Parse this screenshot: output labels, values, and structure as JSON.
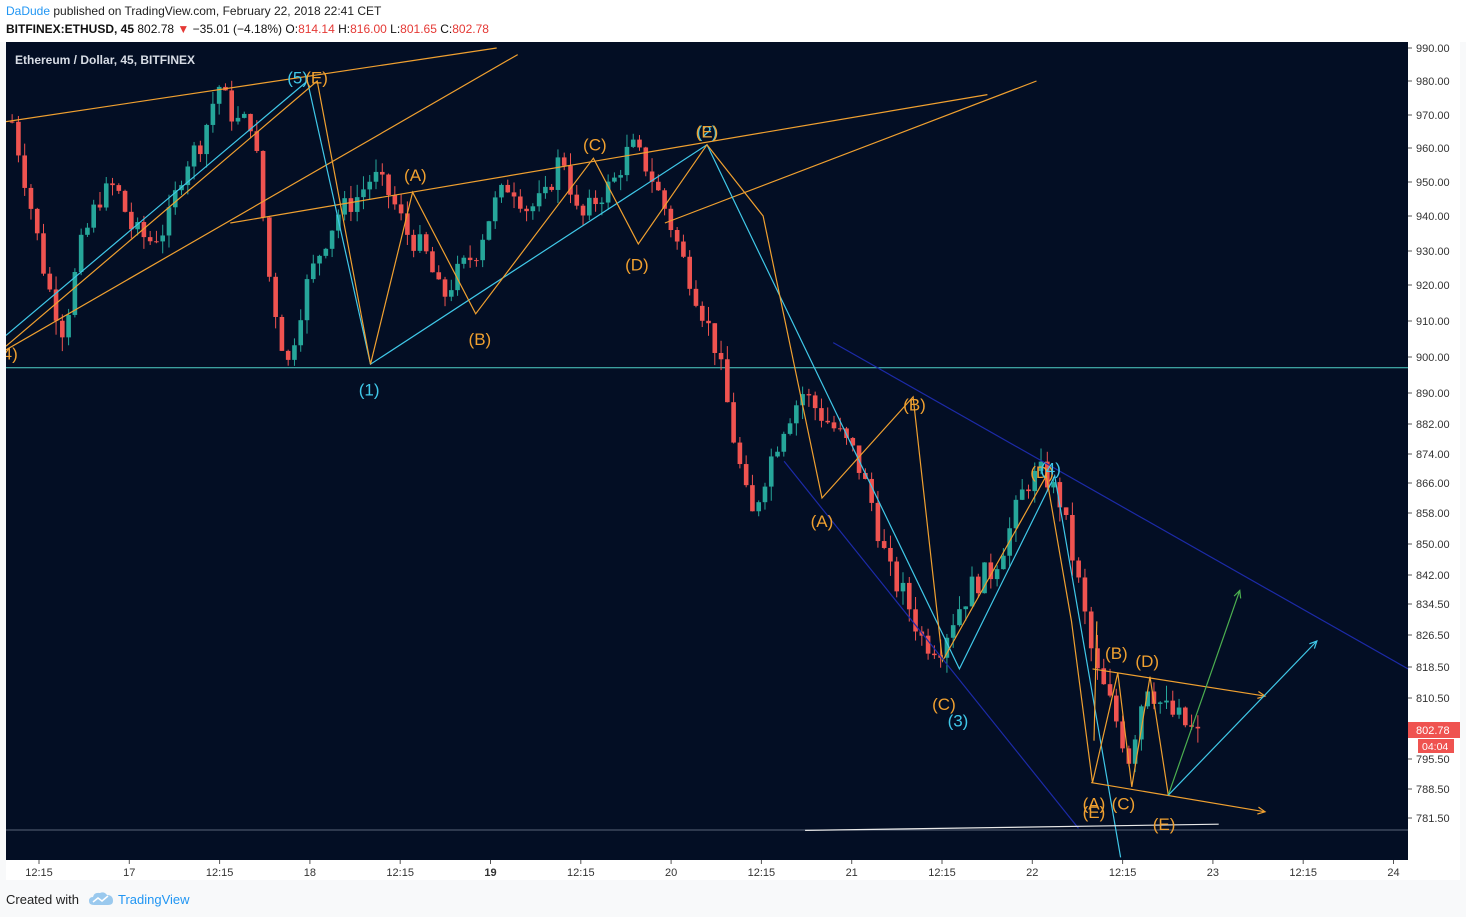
{
  "header": {
    "author": "DaDude",
    "published": "published on TradingView.com, February 22, 2018 22:41 CET",
    "symbol": "BITFINEX:ETHUSD, 45",
    "last": "802.78",
    "change": "−35.01 (−4.18%)",
    "o_label": "O:",
    "o_value": "814.14",
    "h_label": "H:",
    "h_value": "816.00",
    "l_label": "L:",
    "l_value": "801.65",
    "c_label": "C:",
    "c_value": "802.78"
  },
  "footer": {
    "created_with": "Created with",
    "brand": "TradingView"
  },
  "colors": {
    "background": "#030e24",
    "up": "#26a69a",
    "down": "#ef5350",
    "orange": "#f0a030",
    "cyan": "#40c8e8",
    "navy": "#1c2aa8",
    "green": "#4caf50"
  },
  "chart_data": {
    "type": "candlestick",
    "title": "Ethereum / Dollar, 45, BITFINEX",
    "y_ticks": [
      990,
      980,
      970,
      960,
      950,
      940,
      930,
      920,
      910,
      900,
      890,
      882,
      874,
      866,
      858,
      850,
      842,
      834.5,
      826.5,
      818.5,
      810.5,
      795.5,
      788.5,
      781.5
    ],
    "y_tick_labels": [
      "990.00",
      "980.00",
      "970.00",
      "960.00",
      "950.00",
      "940.00",
      "930.00",
      "920.00",
      "910.00",
      "900.00",
      "890.00",
      "882.00",
      "874.00",
      "866.00",
      "858.00",
      "850.00",
      "842.00",
      "834.50",
      "826.50",
      "818.50",
      "810.50",
      "795.50",
      "788.50",
      "781.50"
    ],
    "x_ticks": [
      "12:15",
      "17",
      "12:15",
      "18",
      "12:15",
      "19",
      "12:15",
      "20",
      "12:15",
      "21",
      "12:15",
      "22",
      "12:15",
      "23",
      "12:15",
      "24"
    ],
    "price_label": "802.78",
    "countdown": "04:04",
    "horizontal_line": 897,
    "path": [
      968,
      945,
      921,
      907,
      931,
      945,
      949,
      936,
      933,
      937,
      955,
      962,
      979,
      968,
      968,
      921,
      897,
      918,
      931,
      941,
      945,
      952,
      946,
      935,
      930,
      916,
      924,
      930,
      943,
      950,
      942,
      945,
      959,
      938,
      945,
      950,
      961,
      954,
      942,
      928,
      915,
      902,
      878,
      856,
      871,
      883,
      890,
      885,
      880,
      874,
      861,
      843,
      836,
      825,
      824,
      833,
      840,
      843,
      853,
      866,
      869,
      861,
      841,
      818,
      808,
      796,
      815,
      808,
      805,
      801
    ],
    "seed": 7,
    "wave_labels": [
      {
        "t": "(5)",
        "x": 0.208,
        "y": 981,
        "c": "cyan"
      },
      {
        "t": "(E)",
        "x": 0.2215,
        "y": 981,
        "c": "orange"
      },
      {
        "t": "(A)",
        "x": 0.292,
        "y": 952,
        "c": "orange"
      },
      {
        "t": "(C)",
        "x": 0.42,
        "y": 961,
        "c": "orange"
      },
      {
        "t": "(2)",
        "x": 0.5,
        "y": 965,
        "c": "cyan"
      },
      {
        "t": "(E)",
        "x": 0.5,
        "y": 965,
        "c": "orange"
      },
      {
        "t": "(D)",
        "x": 0.45,
        "y": 926,
        "c": "orange"
      },
      {
        "t": "(B)",
        "x": 0.338,
        "y": 905,
        "c": "orange"
      },
      {
        "t": "(1)",
        "x": 0.259,
        "y": 891,
        "c": "cyan"
      },
      {
        "t": "(B)",
        "x": 0.648,
        "y": 887,
        "c": "orange"
      },
      {
        "t": "(A)",
        "x": 0.582,
        "y": 856,
        "c": "orange"
      },
      {
        "t": "(D)",
        "x": 0.739,
        "y": 869,
        "c": "orange"
      },
      {
        "t": "(4)",
        "x": 0.745,
        "y": 870,
        "c": "cyan"
      },
      {
        "t": "(C)",
        "x": 0.669,
        "y": 809,
        "c": "orange"
      },
      {
        "t": "(3)",
        "x": 0.679,
        "y": 805,
        "c": "cyan"
      },
      {
        "t": "(B)",
        "x": 0.792,
        "y": 822,
        "c": "orange"
      },
      {
        "t": "(D)",
        "x": 0.814,
        "y": 820,
        "c": "orange"
      },
      {
        "t": "(A)",
        "x": 0.776,
        "y": 785,
        "c": "orange"
      },
      {
        "t": "(E)",
        "x": 0.776,
        "y": 783,
        "c": "orange"
      },
      {
        "t": "(C)",
        "x": 0.797,
        "y": 785,
        "c": "orange"
      },
      {
        "t": "(E)",
        "x": 0.826,
        "y": 780,
        "c": "orange"
      },
      {
        "t": "4)",
        "x": 0.003,
        "y": 901,
        "c": "orange"
      }
    ],
    "lines": [
      {
        "c": "orange",
        "p": [
          [
            0,
            968
          ],
          [
            0.35,
            990
          ]
        ]
      },
      {
        "c": "orange",
        "p": [
          [
            0,
            902
          ],
          [
            0.365,
            988
          ]
        ]
      },
      {
        "c": "orange",
        "p": [
          [
            0.16,
            938
          ],
          [
            0.7,
            976
          ]
        ]
      },
      {
        "c": "orange",
        "p": [
          [
            0.47,
            938
          ],
          [
            0.735,
            980
          ]
        ]
      },
      {
        "c": "cyan",
        "p": [
          [
            0,
            906
          ],
          [
            0.215,
            980
          ],
          [
            0.26,
            898
          ],
          [
            0.5,
            961
          ],
          [
            0.68,
            818
          ],
          [
            0.748,
            868
          ],
          [
            0.795,
            772
          ]
        ]
      },
      {
        "c": "orange",
        "p": [
          [
            0,
            903
          ],
          [
            0.222,
            980
          ],
          [
            0.26,
            898
          ],
          [
            0.29,
            947
          ],
          [
            0.335,
            912
          ],
          [
            0.419,
            957
          ],
          [
            0.451,
            932
          ],
          [
            0.5,
            961
          ],
          [
            0.54,
            940
          ],
          [
            0.582,
            862
          ],
          [
            0.647,
            889
          ],
          [
            0.668,
            820
          ],
          [
            0.742,
            868
          ],
          [
            0.76,
            830
          ],
          [
            0.775,
            790
          ],
          [
            0.793,
            817
          ],
          [
            0.803,
            789
          ],
          [
            0.816,
            816
          ],
          [
            0.829,
            787
          ]
        ]
      },
      {
        "c": "orange",
        "p": [
          [
            0.776,
            800
          ],
          [
            0.778,
            830
          ]
        ]
      },
      {
        "c": "navy",
        "p": [
          [
            0.555,
            872
          ],
          [
            0.765,
            779
          ]
        ]
      },
      {
        "c": "navy",
        "p": [
          [
            0.59,
            904
          ],
          [
            1.0,
            818
          ]
        ]
      },
      {
        "c": "white",
        "p": [
          [
            0.57,
            778.5
          ],
          [
            0.865,
            780
          ]
        ]
      }
    ],
    "arrows": [
      {
        "c": "orange",
        "p": [
          [
            0.775,
            818
          ],
          [
            0.898,
            811
          ]
        ]
      },
      {
        "c": "orange",
        "p": [
          [
            0.774,
            790
          ],
          [
            0.898,
            783
          ]
        ]
      },
      {
        "c": "green",
        "p": [
          [
            0.829,
            787
          ],
          [
            0.88,
            838
          ]
        ]
      },
      {
        "c": "cyan",
        "p": [
          [
            0.829,
            787
          ],
          [
            0.935,
            825
          ]
        ]
      }
    ]
  }
}
